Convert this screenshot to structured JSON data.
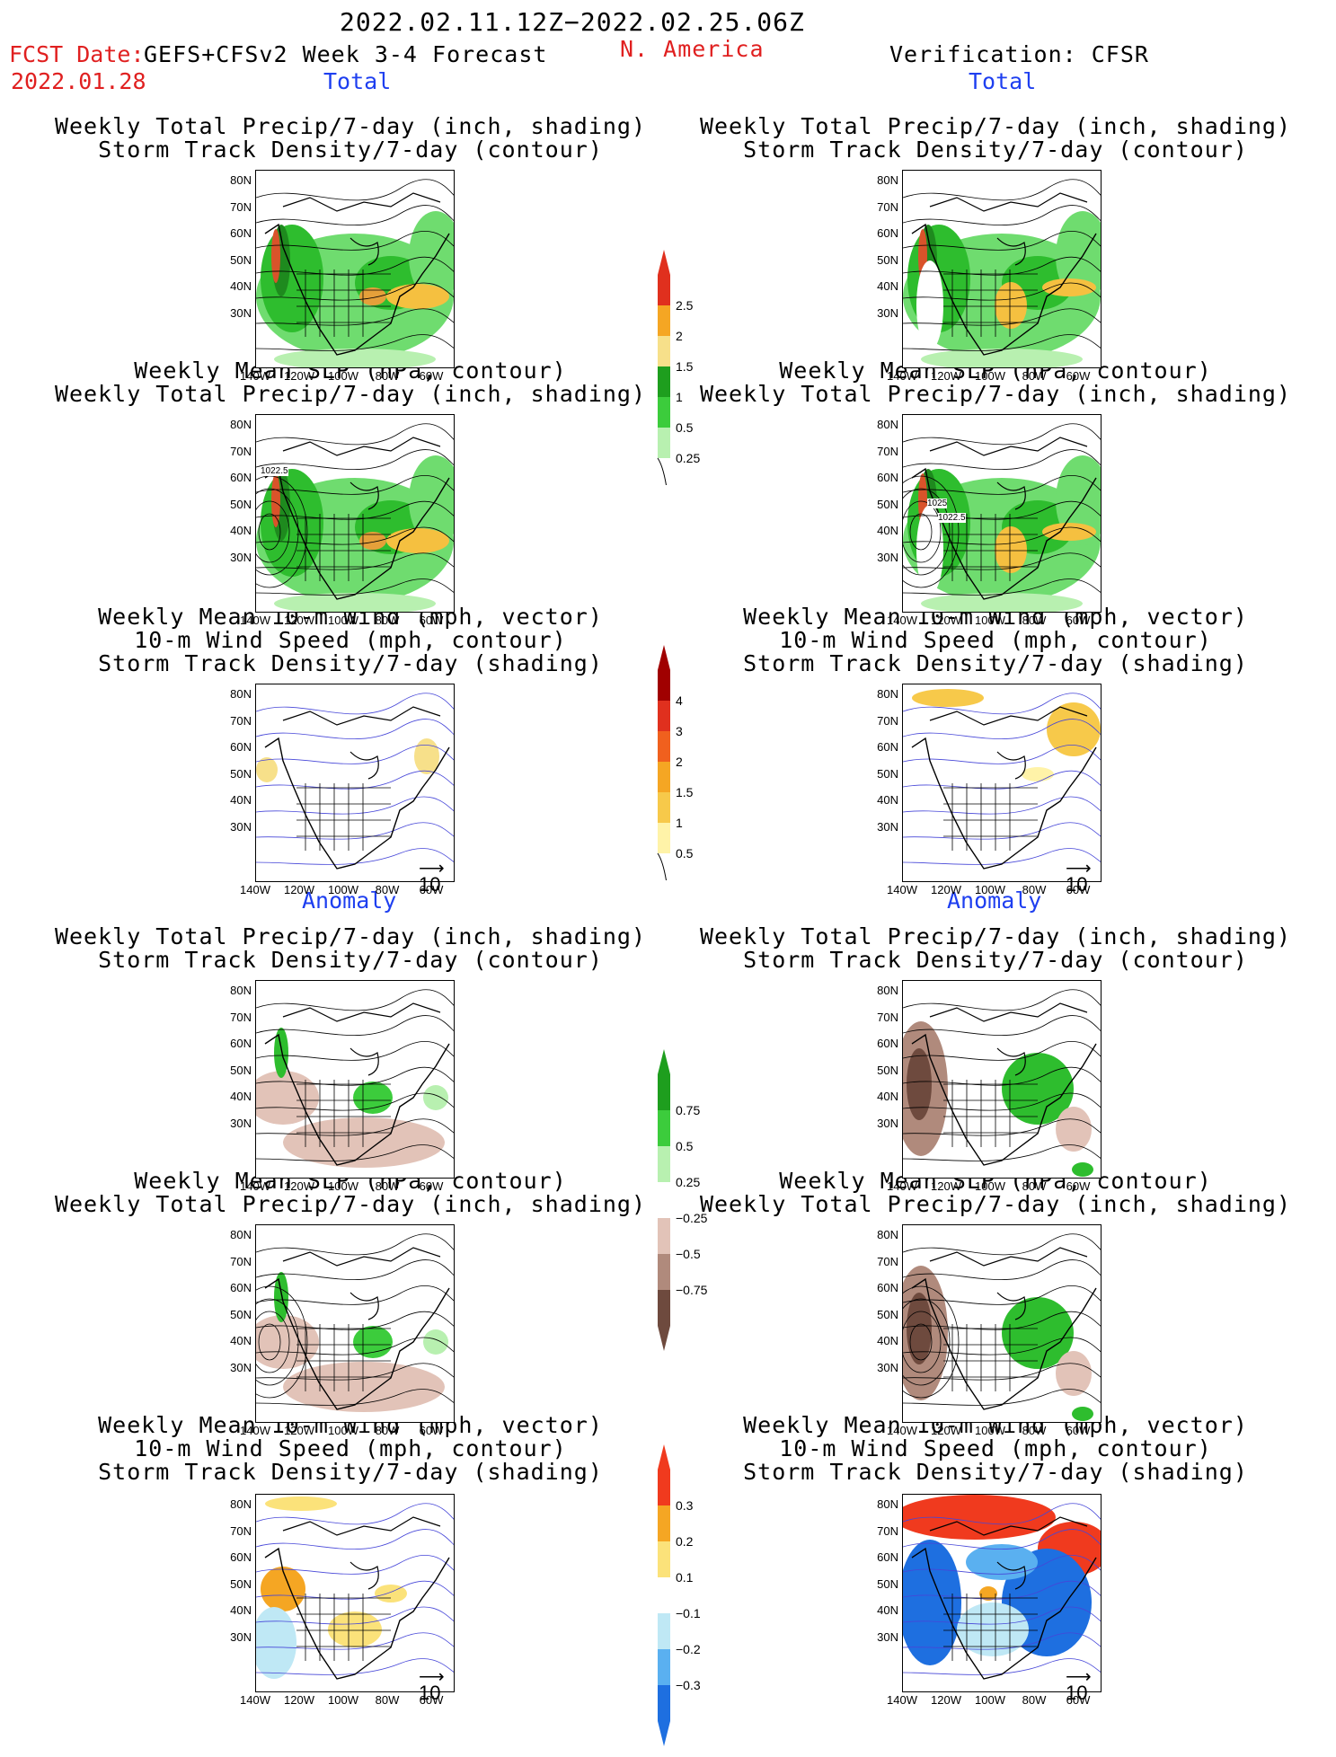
{
  "header": {
    "date_range": "2022.02.11.12Z−2022.02.25.06Z",
    "fcst_label": "FCST Date:",
    "model_label": "GEFS+CFSv2 Week 3-4 Forecast",
    "fcst_date": "2022.01.28",
    "region": "N. America",
    "verification": "Verification: CFSR"
  },
  "sections": {
    "total": "Total",
    "anomaly": "Anomaly"
  },
  "panel_titles": {
    "precip": [
      "Weekly Total Precip/7-day (inch, shading)",
      "Storm Track Density/7-day (contour)"
    ],
    "slp": [
      "Weekly Mean SLP (hPa, contour)",
      "Weekly Total Precip/7-day (inch, shading)"
    ],
    "wind": [
      "Weekly Mean 10-m Wind (mph, vector)",
      "10-m Wind Speed (mph, contour)",
      "Storm Track Density/7-day (shading)"
    ]
  },
  "axes": {
    "lat_labels": [
      "80N",
      "70N",
      "60N",
      "50N",
      "40N",
      "30N"
    ],
    "lon_labels": [
      "140W",
      "120W",
      "100W",
      "80W",
      "60W"
    ]
  },
  "contour_labels": {
    "fcst_slp": "1022.5",
    "obs_slp_a": "1025",
    "obs_slp_b": "1022.5"
  },
  "vector_ref": "10",
  "colorbars": {
    "total_precip": {
      "labels": [
        "2.5",
        "2",
        "1.5",
        "1",
        "0.5",
        "0.25"
      ],
      "colors": [
        "#e0301e",
        "#f5a623",
        "#f7e08a",
        "#1e9e1e",
        "#3ccc3c",
        "#b8f0b0"
      ]
    },
    "total_storm": {
      "labels": [
        "4",
        "3",
        "2",
        "1.5",
        "1",
        "0.5"
      ],
      "colors": [
        "#a00000",
        "#e0301e",
        "#f0601e",
        "#f5a623",
        "#f7c94a",
        "#fff3a8"
      ]
    },
    "anom_precip": {
      "labels": [
        "0.75",
        "0.5",
        "0.25",
        "−0.25",
        "−0.5",
        "−0.75"
      ],
      "colors_pos": [
        "#1e9e1e",
        "#3ccc3c",
        "#b8f0b0"
      ],
      "colors_neg": [
        "#e2c3b8",
        "#b08a7c",
        "#6e4a3e"
      ]
    },
    "anom_storm": {
      "labels": [
        "0.3",
        "0.2",
        "0.1",
        "−0.1",
        "−0.2",
        "−0.3"
      ],
      "colors_pos": [
        "#f03a1e",
        "#f5a623",
        "#fbe27a"
      ],
      "colors_neg": [
        "#bfe8f5",
        "#5ab0f0",
        "#1e6fe0"
      ]
    }
  }
}
